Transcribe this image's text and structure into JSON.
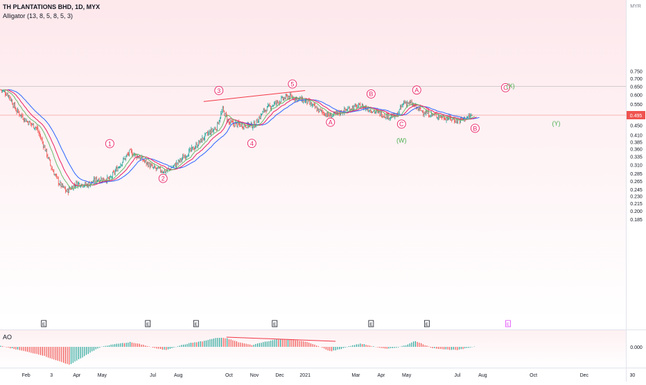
{
  "header": {
    "title": "TH PLANTATIONS BHD, 1D, MYX",
    "indicator": "Alligator (13, 8, 5, 8, 5, 3)",
    "ao_label": "AO"
  },
  "colors": {
    "up": "#26a69a",
    "down": "#ef5350",
    "jaw": "#2962ff",
    "teeth": "#e91e63",
    "lips": "#66bb6a",
    "wave_label": "#e91e63",
    "corrective_label": "#4caf50",
    "trendline": "#f23645",
    "ref_line_gray": "#9e9e9e",
    "price_tag_bg": "#ef5350",
    "event_special": "#e040fb"
  },
  "chart_data": {
    "type": "candlestick",
    "title": "TH PLANTATIONS BHD, 1D, MYX",
    "currency": "MYR",
    "ylim": [
      0.175,
      0.775
    ],
    "y_ticks": [
      "0.750",
      "0.700",
      "0.650",
      "0.600",
      "0.550",
      "0.500",
      "0.450",
      "0.410",
      "0.385",
      "0.360",
      "0.335",
      "0.310",
      "0.285",
      "0.265",
      "0.245",
      "0.230",
      "0.215",
      "0.200",
      "0.185"
    ],
    "log_scale": true,
    "last_price": "0.495",
    "reference_lines": [
      0.65,
      0.495
    ],
    "x_labels": [
      {
        "label": "Feb",
        "month": 1
      },
      {
        "label": "3",
        "month": 2
      },
      {
        "label": "Apr",
        "month": 3
      },
      {
        "label": "May",
        "month": 4
      },
      {
        "label": "Jul",
        "month": 6
      },
      {
        "label": "Aug",
        "month": 7
      },
      {
        "label": "Oct",
        "month": 9
      },
      {
        "label": "Nov",
        "month": 10
      },
      {
        "label": "Dec",
        "month": 11
      },
      {
        "label": "2021",
        "month": 12
      },
      {
        "label": "Mar",
        "month": 14
      },
      {
        "label": "Apr",
        "month": 15
      },
      {
        "label": "May",
        "month": 16
      },
      {
        "label": "Jul",
        "month": 18
      },
      {
        "label": "Aug",
        "month": 19
      },
      {
        "label": "Oct",
        "month": 21
      },
      {
        "label": "Dec",
        "month": 23
      },
      {
        "label": "30",
        "month": 24.9
      }
    ],
    "price_path": [
      [
        0.0,
        0.63
      ],
      [
        0.3,
        0.6
      ],
      [
        0.6,
        0.52
      ],
      [
        1.0,
        0.47
      ],
      [
        1.4,
        0.44
      ],
      [
        1.7,
        0.37
      ],
      [
        2.0,
        0.3
      ],
      [
        2.3,
        0.26
      ],
      [
        2.6,
        0.24
      ],
      [
        3.0,
        0.26
      ],
      [
        3.4,
        0.255
      ],
      [
        3.8,
        0.27
      ],
      [
        4.3,
        0.27
      ],
      [
        4.7,
        0.31
      ],
      [
        5.1,
        0.35
      ],
      [
        5.5,
        0.33
      ],
      [
        6.0,
        0.3
      ],
      [
        6.5,
        0.29
      ],
      [
        6.9,
        0.31
      ],
      [
        7.3,
        0.34
      ],
      [
        7.7,
        0.37
      ],
      [
        8.1,
        0.41
      ],
      [
        8.5,
        0.44
      ],
      [
        8.75,
        0.52
      ],
      [
        9.0,
        0.46
      ],
      [
        9.5,
        0.45
      ],
      [
        10.0,
        0.45
      ],
      [
        10.4,
        0.52
      ],
      [
        10.9,
        0.56
      ],
      [
        11.3,
        0.59
      ],
      [
        11.7,
        0.58
      ],
      [
        12.1,
        0.56
      ],
      [
        12.5,
        0.52
      ],
      [
        13.0,
        0.49
      ],
      [
        13.4,
        0.51
      ],
      [
        13.8,
        0.53
      ],
      [
        14.2,
        0.54
      ],
      [
        14.6,
        0.52
      ],
      [
        15.0,
        0.5
      ],
      [
        15.3,
        0.49
      ],
      [
        15.6,
        0.49
      ],
      [
        15.9,
        0.56
      ],
      [
        16.2,
        0.55
      ],
      [
        16.5,
        0.52
      ],
      [
        16.9,
        0.5
      ],
      [
        17.3,
        0.49
      ],
      [
        17.7,
        0.48
      ],
      [
        18.0,
        0.47
      ],
      [
        18.3,
        0.48
      ],
      [
        18.6,
        0.495
      ]
    ],
    "wave_labels": [
      {
        "text": "1",
        "month": 4.3,
        "price": 0.378,
        "group": "impulse"
      },
      {
        "text": "2",
        "month": 6.4,
        "price": 0.272,
        "group": "impulse"
      },
      {
        "text": "3",
        "month": 8.6,
        "price": 0.625,
        "group": "impulse"
      },
      {
        "text": "4",
        "month": 9.9,
        "price": 0.379,
        "group": "impulse"
      },
      {
        "text": "5",
        "month": 11.5,
        "price": 0.665,
        "group": "impulse"
      },
      {
        "text": "A",
        "month": 13.0,
        "price": 0.463,
        "group": "impulse"
      },
      {
        "text": "B",
        "month": 14.6,
        "price": 0.605,
        "group": "impulse"
      },
      {
        "text": "C",
        "month": 15.8,
        "price": 0.455,
        "group": "impulse"
      },
      {
        "text": "A",
        "month": 16.4,
        "price": 0.628,
        "group": "impulse"
      },
      {
        "text": "B",
        "month": 18.7,
        "price": 0.437,
        "group": "impulse"
      },
      {
        "text": "C",
        "month": 19.9,
        "price": 0.642,
        "group": "impulse"
      },
      {
        "text": "(W)",
        "month": 15.8,
        "price": 0.39,
        "group": "corrective"
      },
      {
        "text": "(X)",
        "month": 20.1,
        "price": 0.653,
        "group": "corrective"
      },
      {
        "text": "(Y)",
        "month": 21.9,
        "price": 0.459,
        "group": "corrective"
      }
    ],
    "trendlines": [
      {
        "from": [
          8.0,
          0.563
        ],
        "to": [
          12.0,
          0.625
        ]
      }
    ],
    "event_markers": [
      {
        "label": "E",
        "month": 1.7
      },
      {
        "label": "E",
        "month": 5.8
      },
      {
        "label": "E",
        "month": 7.7
      },
      {
        "label": "E",
        "month": 10.8
      },
      {
        "label": "E",
        "month": 14.6
      },
      {
        "label": "E",
        "month": 16.8
      },
      {
        "label": "E",
        "month": 20.0,
        "special": true
      }
    ],
    "ao": {
      "label": "AO",
      "zero_label": "0.000",
      "ylim": [
        -1,
        1
      ],
      "path": [
        [
          0,
          0.05
        ],
        [
          0.8,
          -0.2
        ],
        [
          1.6,
          -0.45
        ],
        [
          2.3,
          -0.8
        ],
        [
          2.7,
          -1.0
        ],
        [
          3.2,
          -0.6
        ],
        [
          3.6,
          -0.25
        ],
        [
          4.0,
          0.02
        ],
        [
          4.5,
          0.15
        ],
        [
          5.1,
          0.26
        ],
        [
          5.6,
          0.12
        ],
        [
          6.1,
          -0.08
        ],
        [
          6.5,
          -0.18
        ],
        [
          7.0,
          0.05
        ],
        [
          7.5,
          0.22
        ],
        [
          8.0,
          0.32
        ],
        [
          8.5,
          0.5
        ],
        [
          8.9,
          0.48
        ],
        [
          9.4,
          0.25
        ],
        [
          9.9,
          0.1
        ],
        [
          10.4,
          0.28
        ],
        [
          10.9,
          0.42
        ],
        [
          11.4,
          0.4
        ],
        [
          12.0,
          0.3
        ],
        [
          12.5,
          0.05
        ],
        [
          13.0,
          -0.25
        ],
        [
          13.4,
          -0.12
        ],
        [
          13.8,
          0.06
        ],
        [
          14.2,
          0.18
        ],
        [
          14.7,
          0.02
        ],
        [
          15.2,
          -0.12
        ],
        [
          15.6,
          -0.04
        ],
        [
          16.0,
          0.1
        ],
        [
          16.3,
          0.33
        ],
        [
          16.6,
          0.18
        ],
        [
          17.0,
          -0.06
        ],
        [
          17.5,
          -0.14
        ],
        [
          18.0,
          -0.18
        ],
        [
          18.5,
          -0.04
        ],
        [
          18.7,
          0.03
        ]
      ],
      "trendline": {
        "from": [
          8.9,
          0.5
        ],
        "to": [
          13.2,
          0.27
        ]
      }
    }
  }
}
